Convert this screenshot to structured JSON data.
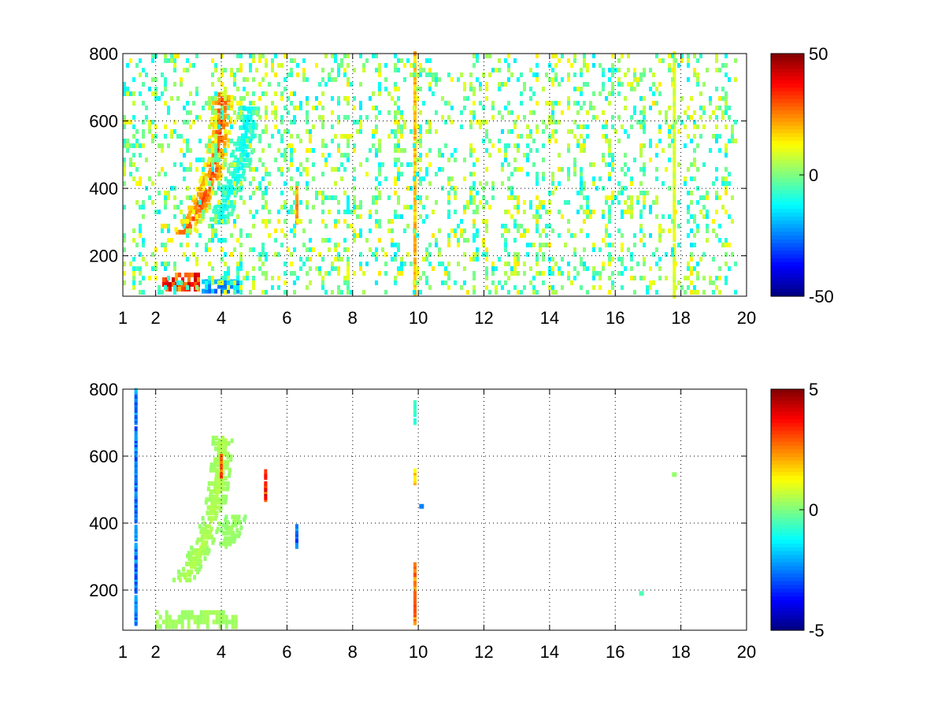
{
  "figure": {
    "background": "#ffffff",
    "colormap": "jet"
  },
  "chart_data": [
    {
      "type": "heatmap",
      "title": "",
      "xlabel": "",
      "ylabel": "",
      "xlim": [
        1,
        20
      ],
      "ylim": [
        80,
        800
      ],
      "x_ticks": [
        "1",
        "2",
        "4",
        "6",
        "8",
        "10",
        "12",
        "14",
        "16",
        "18",
        "20"
      ],
      "y_ticks": [
        "200",
        "400",
        "600",
        "800"
      ],
      "grid": true,
      "colorbar": {
        "min": -50,
        "max": 50,
        "ticks": [
          "50",
          "0",
          "-50"
        ]
      },
      "features": [
        {
          "kind": "curve",
          "points": [
            [
              2.8,
              270
            ],
            [
              3.1,
              310
            ],
            [
              3.4,
              370
            ],
            [
              3.7,
              450
            ],
            [
              3.85,
              520
            ],
            [
              3.95,
              600
            ],
            [
              4.0,
              680
            ]
          ],
          "value": 30
        },
        {
          "kind": "curve",
          "points": [
            [
              3.9,
              300
            ],
            [
              4.1,
              360
            ],
            [
              4.35,
              420
            ],
            [
              4.55,
              480
            ],
            [
              4.7,
              560
            ],
            [
              4.8,
              640
            ]
          ],
          "value": -12
        },
        {
          "kind": "blob",
          "x": [
            2.2,
            3.4
          ],
          "y": [
            80,
            150
          ],
          "value": 40
        },
        {
          "kind": "blob",
          "x": [
            3.4,
            4.6
          ],
          "y": [
            80,
            130
          ],
          "value": -30
        },
        {
          "kind": "column",
          "x": 9.9,
          "y": [
            80,
            800
          ],
          "value": 22
        },
        {
          "kind": "column",
          "x": 17.8,
          "y": [
            80,
            800
          ],
          "value": 10
        },
        {
          "kind": "column",
          "x": 6.3,
          "y": [
            300,
            420
          ],
          "value": 25
        },
        {
          "kind": "noise",
          "x": [
            1,
            19.8
          ],
          "y": [
            80,
            800
          ],
          "value_range": [
            -15,
            15
          ],
          "density": 0.35
        }
      ]
    },
    {
      "type": "heatmap",
      "title": "",
      "xlabel": "",
      "ylabel": "",
      "xlim": [
        1,
        20
      ],
      "ylim": [
        80,
        800
      ],
      "x_ticks": [
        "1",
        "2",
        "4",
        "6",
        "8",
        "10",
        "12",
        "14",
        "16",
        "18",
        "20"
      ],
      "y_ticks": [
        "200",
        "400",
        "600",
        "800"
      ],
      "grid": true,
      "colorbar": {
        "min": -5,
        "max": 5,
        "ticks": [
          "5",
          "0",
          "-5"
        ]
      },
      "features": [
        {
          "kind": "curve",
          "points": [
            [
              2.8,
              230
            ],
            [
              3.1,
              280
            ],
            [
              3.4,
              340
            ],
            [
              3.7,
              420
            ],
            [
              3.85,
              500
            ],
            [
              3.95,
              580
            ],
            [
              4.0,
              660
            ]
          ],
          "value": 0.5
        },
        {
          "kind": "curve",
          "points": [
            [
              4.1,
              330
            ],
            [
              4.25,
              380
            ],
            [
              4.4,
              420
            ]
          ],
          "value": 0.3
        },
        {
          "kind": "blob",
          "x": [
            2.0,
            4.5
          ],
          "y": [
            80,
            140
          ],
          "value": 0.4
        },
        {
          "kind": "column",
          "x": 1.4,
          "y": [
            100,
            800
          ],
          "value": -3
        },
        {
          "kind": "column",
          "x": 9.9,
          "y": [
            90,
            310
          ],
          "value": 3
        },
        {
          "kind": "column",
          "x": 9.9,
          "y": [
            520,
            560
          ],
          "value": 2
        },
        {
          "kind": "column",
          "x": 9.9,
          "y": [
            700,
            760
          ],
          "value": -1
        },
        {
          "kind": "column",
          "x": 6.3,
          "y": [
            330,
            400
          ],
          "value": -3
        },
        {
          "kind": "column",
          "x": 5.35,
          "y": [
            470,
            560
          ],
          "value": 4
        },
        {
          "kind": "column",
          "x": 4.0,
          "y": [
            540,
            600
          ],
          "value": 3.5
        },
        {
          "kind": "spot",
          "x": 17.8,
          "y": 545,
          "value": 0.2
        },
        {
          "kind": "spot",
          "x": 16.8,
          "y": 190,
          "value": -0.5
        },
        {
          "kind": "spot",
          "x": 10.1,
          "y": 450,
          "value": -2.5
        }
      ]
    }
  ]
}
